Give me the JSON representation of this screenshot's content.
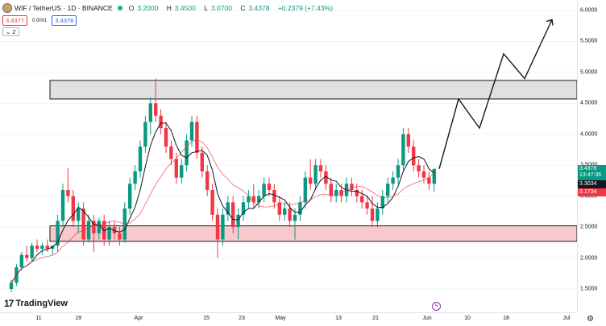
{
  "header": {
    "symbol": "WIF / TetherUS · 1D · BINANCE",
    "ohlc": [
      {
        "k": "O",
        "v": "3.2000"
      },
      {
        "k": "H",
        "v": "3.4500"
      },
      {
        "k": "L",
        "v": "3.0700"
      },
      {
        "k": "C",
        "v": "3.4378"
      },
      {
        "k": "",
        "v": "+0.2379 (+7.43%)"
      }
    ]
  },
  "trade": {
    "bid": "3.4377",
    "spread": "0.0001",
    "ask": "3.4378"
  },
  "indicators_toggle": "2",
  "price_labels": {
    "current": "3.4378",
    "countdown": "13:47:36",
    "ma_fast": "3.3034",
    "ma_slow": "3.1734"
  },
  "brand": "TradingView",
  "colors": {
    "up": "#089981",
    "down": "#f23645",
    "zone_top": "#e0e0e0",
    "zone_bottom": "#f8c9cc"
  },
  "chart_data": {
    "type": "candlestick",
    "y_axis": {
      "min": 1.3,
      "max": 6.0,
      "ticks": [
        "6.0000",
        "5.5000",
        "5.0000",
        "4.5000",
        "4.0000",
        "3.5000",
        "3.0000",
        "2.5000",
        "2.0000",
        "1.5000"
      ]
    },
    "x_axis": {
      "ticks": [
        "11",
        "19",
        "Apr",
        "15",
        "23",
        "May",
        "13",
        "21",
        "Jun",
        "10",
        "18",
        "Jul"
      ]
    },
    "candles": [
      [
        1.5,
        1.65,
        1.45,
        1.6
      ],
      [
        1.6,
        1.9,
        1.55,
        1.85
      ],
      [
        1.85,
        2.1,
        1.8,
        2.05
      ],
      [
        2.05,
        2.2,
        1.95,
        2.0
      ],
      [
        2.0,
        2.25,
        1.95,
        2.2
      ],
      [
        2.2,
        2.3,
        2.1,
        2.15
      ],
      [
        2.15,
        2.25,
        2.05,
        2.2
      ],
      [
        2.2,
        2.3,
        2.1,
        2.15
      ],
      [
        2.15,
        2.2,
        2.05,
        2.2
      ],
      [
        2.2,
        2.7,
        2.1,
        2.6
      ],
      [
        2.6,
        3.2,
        2.5,
        3.1
      ],
      [
        3.1,
        3.45,
        2.9,
        3.0
      ],
      [
        3.0,
        3.1,
        2.5,
        2.6
      ],
      [
        2.6,
        2.9,
        2.4,
        2.8
      ],
      [
        2.8,
        2.9,
        2.2,
        2.3
      ],
      [
        2.3,
        2.7,
        2.25,
        2.6
      ],
      [
        2.6,
        2.7,
        2.1,
        2.4
      ],
      [
        2.4,
        2.65,
        2.3,
        2.6
      ],
      [
        2.6,
        2.7,
        2.2,
        2.3
      ],
      [
        2.3,
        2.6,
        2.2,
        2.5
      ],
      [
        2.5,
        2.6,
        2.3,
        2.4
      ],
      [
        2.4,
        2.5,
        2.2,
        2.3
      ],
      [
        2.3,
        2.9,
        2.25,
        2.8
      ],
      [
        2.8,
        3.3,
        2.7,
        3.2
      ],
      [
        3.2,
        3.5,
        3.1,
        3.4
      ],
      [
        3.4,
        3.9,
        3.3,
        3.8
      ],
      [
        3.8,
        4.3,
        3.7,
        4.2
      ],
      [
        4.2,
        4.6,
        4.0,
        4.5
      ],
      [
        4.5,
        4.9,
        4.2,
        4.3
      ],
      [
        4.3,
        4.4,
        4.0,
        4.1
      ],
      [
        4.1,
        4.2,
        3.7,
        3.8
      ],
      [
        3.8,
        3.9,
        3.5,
        3.6
      ],
      [
        3.6,
        3.7,
        3.2,
        3.3
      ],
      [
        3.3,
        3.6,
        3.2,
        3.5
      ],
      [
        3.5,
        4.0,
        3.4,
        3.9
      ],
      [
        3.9,
        4.3,
        3.8,
        4.2
      ],
      [
        4.2,
        4.3,
        3.6,
        3.7
      ],
      [
        3.7,
        3.8,
        3.3,
        3.4
      ],
      [
        3.4,
        3.5,
        3.0,
        3.1
      ],
      [
        3.1,
        3.2,
        2.6,
        2.7
      ],
      [
        2.7,
        2.8,
        2.0,
        2.3
      ],
      [
        2.3,
        2.8,
        2.2,
        2.7
      ],
      [
        2.7,
        3.0,
        2.6,
        2.9
      ],
      [
        2.9,
        3.0,
        2.4,
        2.5
      ],
      [
        2.5,
        2.8,
        2.3,
        2.7
      ],
      [
        2.7,
        3.0,
        2.6,
        2.9
      ],
      [
        2.9,
        3.1,
        2.8,
        3.0
      ],
      [
        3.0,
        3.2,
        2.8,
        2.9
      ],
      [
        2.9,
        3.1,
        2.8,
        3.0
      ],
      [
        3.0,
        3.3,
        2.9,
        3.2
      ],
      [
        3.2,
        3.3,
        3.0,
        3.1
      ],
      [
        3.1,
        3.2,
        2.8,
        2.9
      ],
      [
        2.9,
        3.0,
        2.6,
        2.7
      ],
      [
        2.7,
        2.9,
        2.6,
        2.8
      ],
      [
        2.8,
        2.9,
        2.5,
        2.6
      ],
      [
        2.6,
        2.8,
        2.3,
        2.7
      ],
      [
        2.7,
        3.0,
        2.6,
        2.9
      ],
      [
        2.9,
        3.4,
        2.8,
        3.3
      ],
      [
        3.3,
        3.6,
        3.1,
        3.2
      ],
      [
        3.2,
        3.6,
        3.1,
        3.5
      ],
      [
        3.5,
        3.6,
        3.3,
        3.4
      ],
      [
        3.4,
        3.5,
        3.1,
        3.2
      ],
      [
        3.2,
        3.3,
        2.9,
        3.0
      ],
      [
        3.0,
        3.2,
        2.9,
        3.1
      ],
      [
        3.1,
        3.2,
        2.9,
        3.0
      ],
      [
        3.0,
        3.3,
        2.9,
        3.2
      ],
      [
        3.2,
        3.3,
        3.0,
        3.1
      ],
      [
        3.1,
        3.2,
        2.9,
        3.0
      ],
      [
        3.0,
        3.1,
        2.8,
        2.9
      ],
      [
        2.9,
        3.0,
        2.7,
        2.8
      ],
      [
        2.8,
        3.0,
        2.5,
        2.6
      ],
      [
        2.6,
        2.9,
        2.5,
        2.8
      ],
      [
        2.8,
        3.1,
        2.7,
        3.0
      ],
      [
        3.0,
        3.3,
        2.9,
        3.2
      ],
      [
        3.2,
        3.4,
        3.1,
        3.3
      ],
      [
        3.3,
        3.6,
        3.2,
        3.5
      ],
      [
        3.5,
        4.1,
        3.4,
        4.0
      ],
      [
        4.0,
        4.1,
        3.7,
        3.8
      ],
      [
        3.8,
        3.9,
        3.4,
        3.5
      ],
      [
        3.5,
        3.6,
        3.3,
        3.4
      ],
      [
        3.4,
        3.5,
        3.2,
        3.3
      ],
      [
        3.3,
        3.4,
        3.1,
        3.2
      ],
      [
        3.2,
        3.45,
        3.07,
        3.4378
      ]
    ],
    "zones": [
      {
        "top": 4.87,
        "bottom": 4.57,
        "color": "#e0e0e0"
      },
      {
        "top": 2.52,
        "bottom": 2.27,
        "color": "#f8c9cc"
      }
    ],
    "projection_path": [
      [
        3.3,
        3.44
      ],
      [
        3.9,
        4.57
      ],
      [
        4.55,
        4.1
      ],
      [
        5.3,
        5.3
      ],
      [
        5.95,
        4.9
      ],
      [
        6.8,
        5.85
      ]
    ],
    "projection_arrow_at": [
      6.8,
      5.85
    ]
  }
}
